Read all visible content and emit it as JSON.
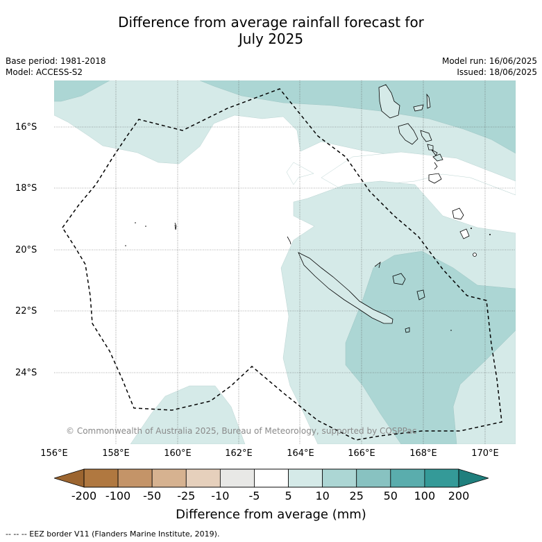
{
  "title_line1": "Difference from average rainfall forecast for",
  "title_line2": "July 2025",
  "meta": {
    "base_period": "Base period: 1981-2018",
    "model": "Model: ACCESS-S2",
    "model_run": "Model run: 16/06/2025",
    "issued": "Issued: 18/06/2025"
  },
  "lat_labels": [
    "16°S",
    "18°S",
    "20°S",
    "22°S",
    "24°S"
  ],
  "lon_labels": [
    "156°E",
    "158°E",
    "160°E",
    "162°E",
    "164°E",
    "166°E",
    "168°E",
    "170°E"
  ],
  "copyright": "© Commonwealth of Australia 2025, Bureau of Meteorology, supported by COSPPac",
  "colorbar": {
    "labels": [
      "-200",
      "-100",
      "-50",
      "-25",
      "-10",
      "-5",
      "5",
      "10",
      "25",
      "50",
      "100",
      "200"
    ],
    "colors": [
      "#9c6530",
      "#b07840",
      "#c49468",
      "#d6b290",
      "#e6d0bc",
      "#e8e8e6",
      "#ffffff",
      "#d5eae8",
      "#acd6d4",
      "#88c2c1",
      "#5aadad",
      "#349a98",
      "#1f7f7d"
    ],
    "title": "Difference from average (mm)"
  },
  "footnote": "--  --  -- EEZ border V11 (Flanders Marine Institute, 2019).",
  "shading": {
    "light": "#d5eae8",
    "medium": "#acd6d4"
  }
}
